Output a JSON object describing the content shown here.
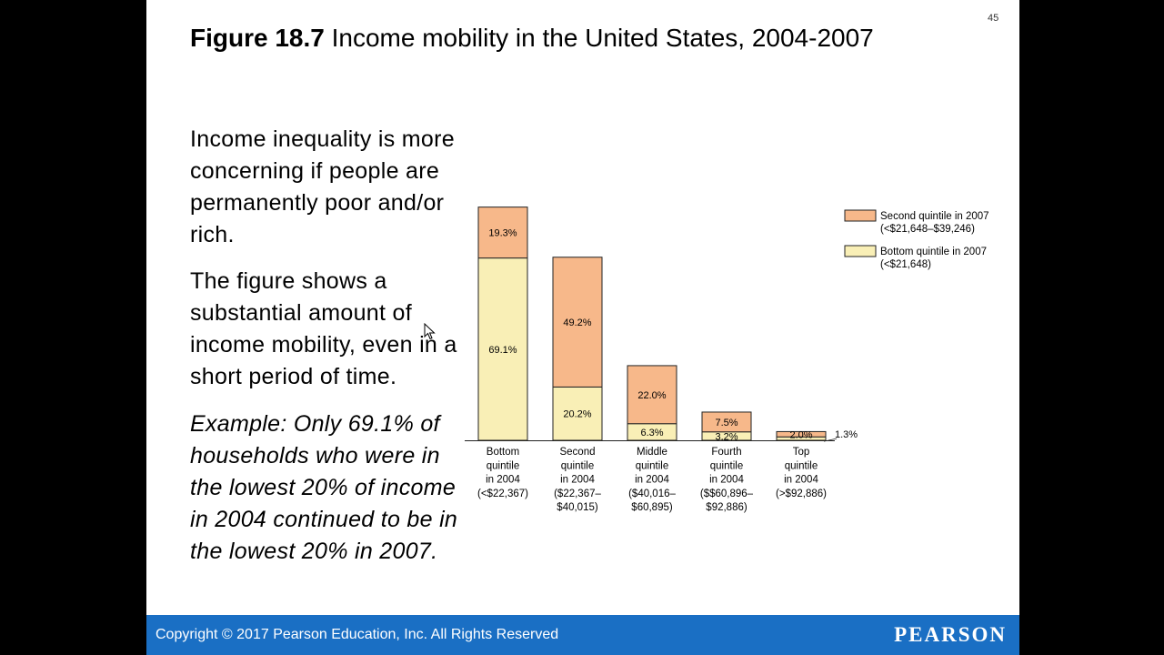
{
  "slide": {
    "number": "45",
    "title_prefix": "Figure 18.7",
    "title_text": "Income mobility in the United States, 2004-2007",
    "paragraph1": "Income inequality is more concerning if people are permanently poor and/or rich.",
    "paragraph2": "The figure shows a substantial amount of income mobility, even in a short period of time.",
    "paragraph3": "Example: Only 69.1% of households who were in the lowest 20% of income in 2004 continued to be in the lowest 20% in 2007."
  },
  "footer": {
    "copyright": "Copyright © 2017 Pearson Education, Inc. All Rights Reserved",
    "brand": "PEARSON"
  },
  "chart_data": {
    "type": "bar",
    "stacked": true,
    "categories": [
      [
        "Bottom",
        "quintile",
        "in 2004",
        "(<$22,367)"
      ],
      [
        "Second",
        "quintile",
        "in 2004",
        "($22,367–",
        "$40,015)"
      ],
      [
        "Middle",
        "quintile",
        "in 2004",
        "($40,016–",
        "$60,895)"
      ],
      [
        "Fourth",
        "quintile",
        "in 2004",
        "($$60,896–",
        "$92,886)"
      ],
      [
        "Top",
        "quintile",
        "in 2004",
        "(>$92,886)"
      ]
    ],
    "series": [
      {
        "name": "Bottom quintile in 2007",
        "legend_lines": [
          "Bottom quintile in 2007",
          "(<$21,648)"
        ],
        "color": "#f9efb6",
        "values": [
          69.1,
          20.2,
          6.3,
          3.2,
          1.3
        ],
        "labels": [
          "69.1%",
          "20.2%",
          "6.3%",
          "3.2%",
          "1.3%"
        ]
      },
      {
        "name": "Second quintile in 2007",
        "legend_lines": [
          "Second quintile in 2007",
          "(<$21,648–$39,246)"
        ],
        "color": "#f7b88a",
        "values": [
          19.3,
          49.2,
          22.0,
          7.5,
          2.0
        ],
        "labels": [
          "19.3%",
          "49.2%",
          "22.0%",
          "7.5%",
          "2.0%"
        ]
      }
    ],
    "ylim": [
      0,
      100
    ],
    "grid": false,
    "legend_position": "right",
    "legend_order": [
      1,
      0
    ]
  }
}
